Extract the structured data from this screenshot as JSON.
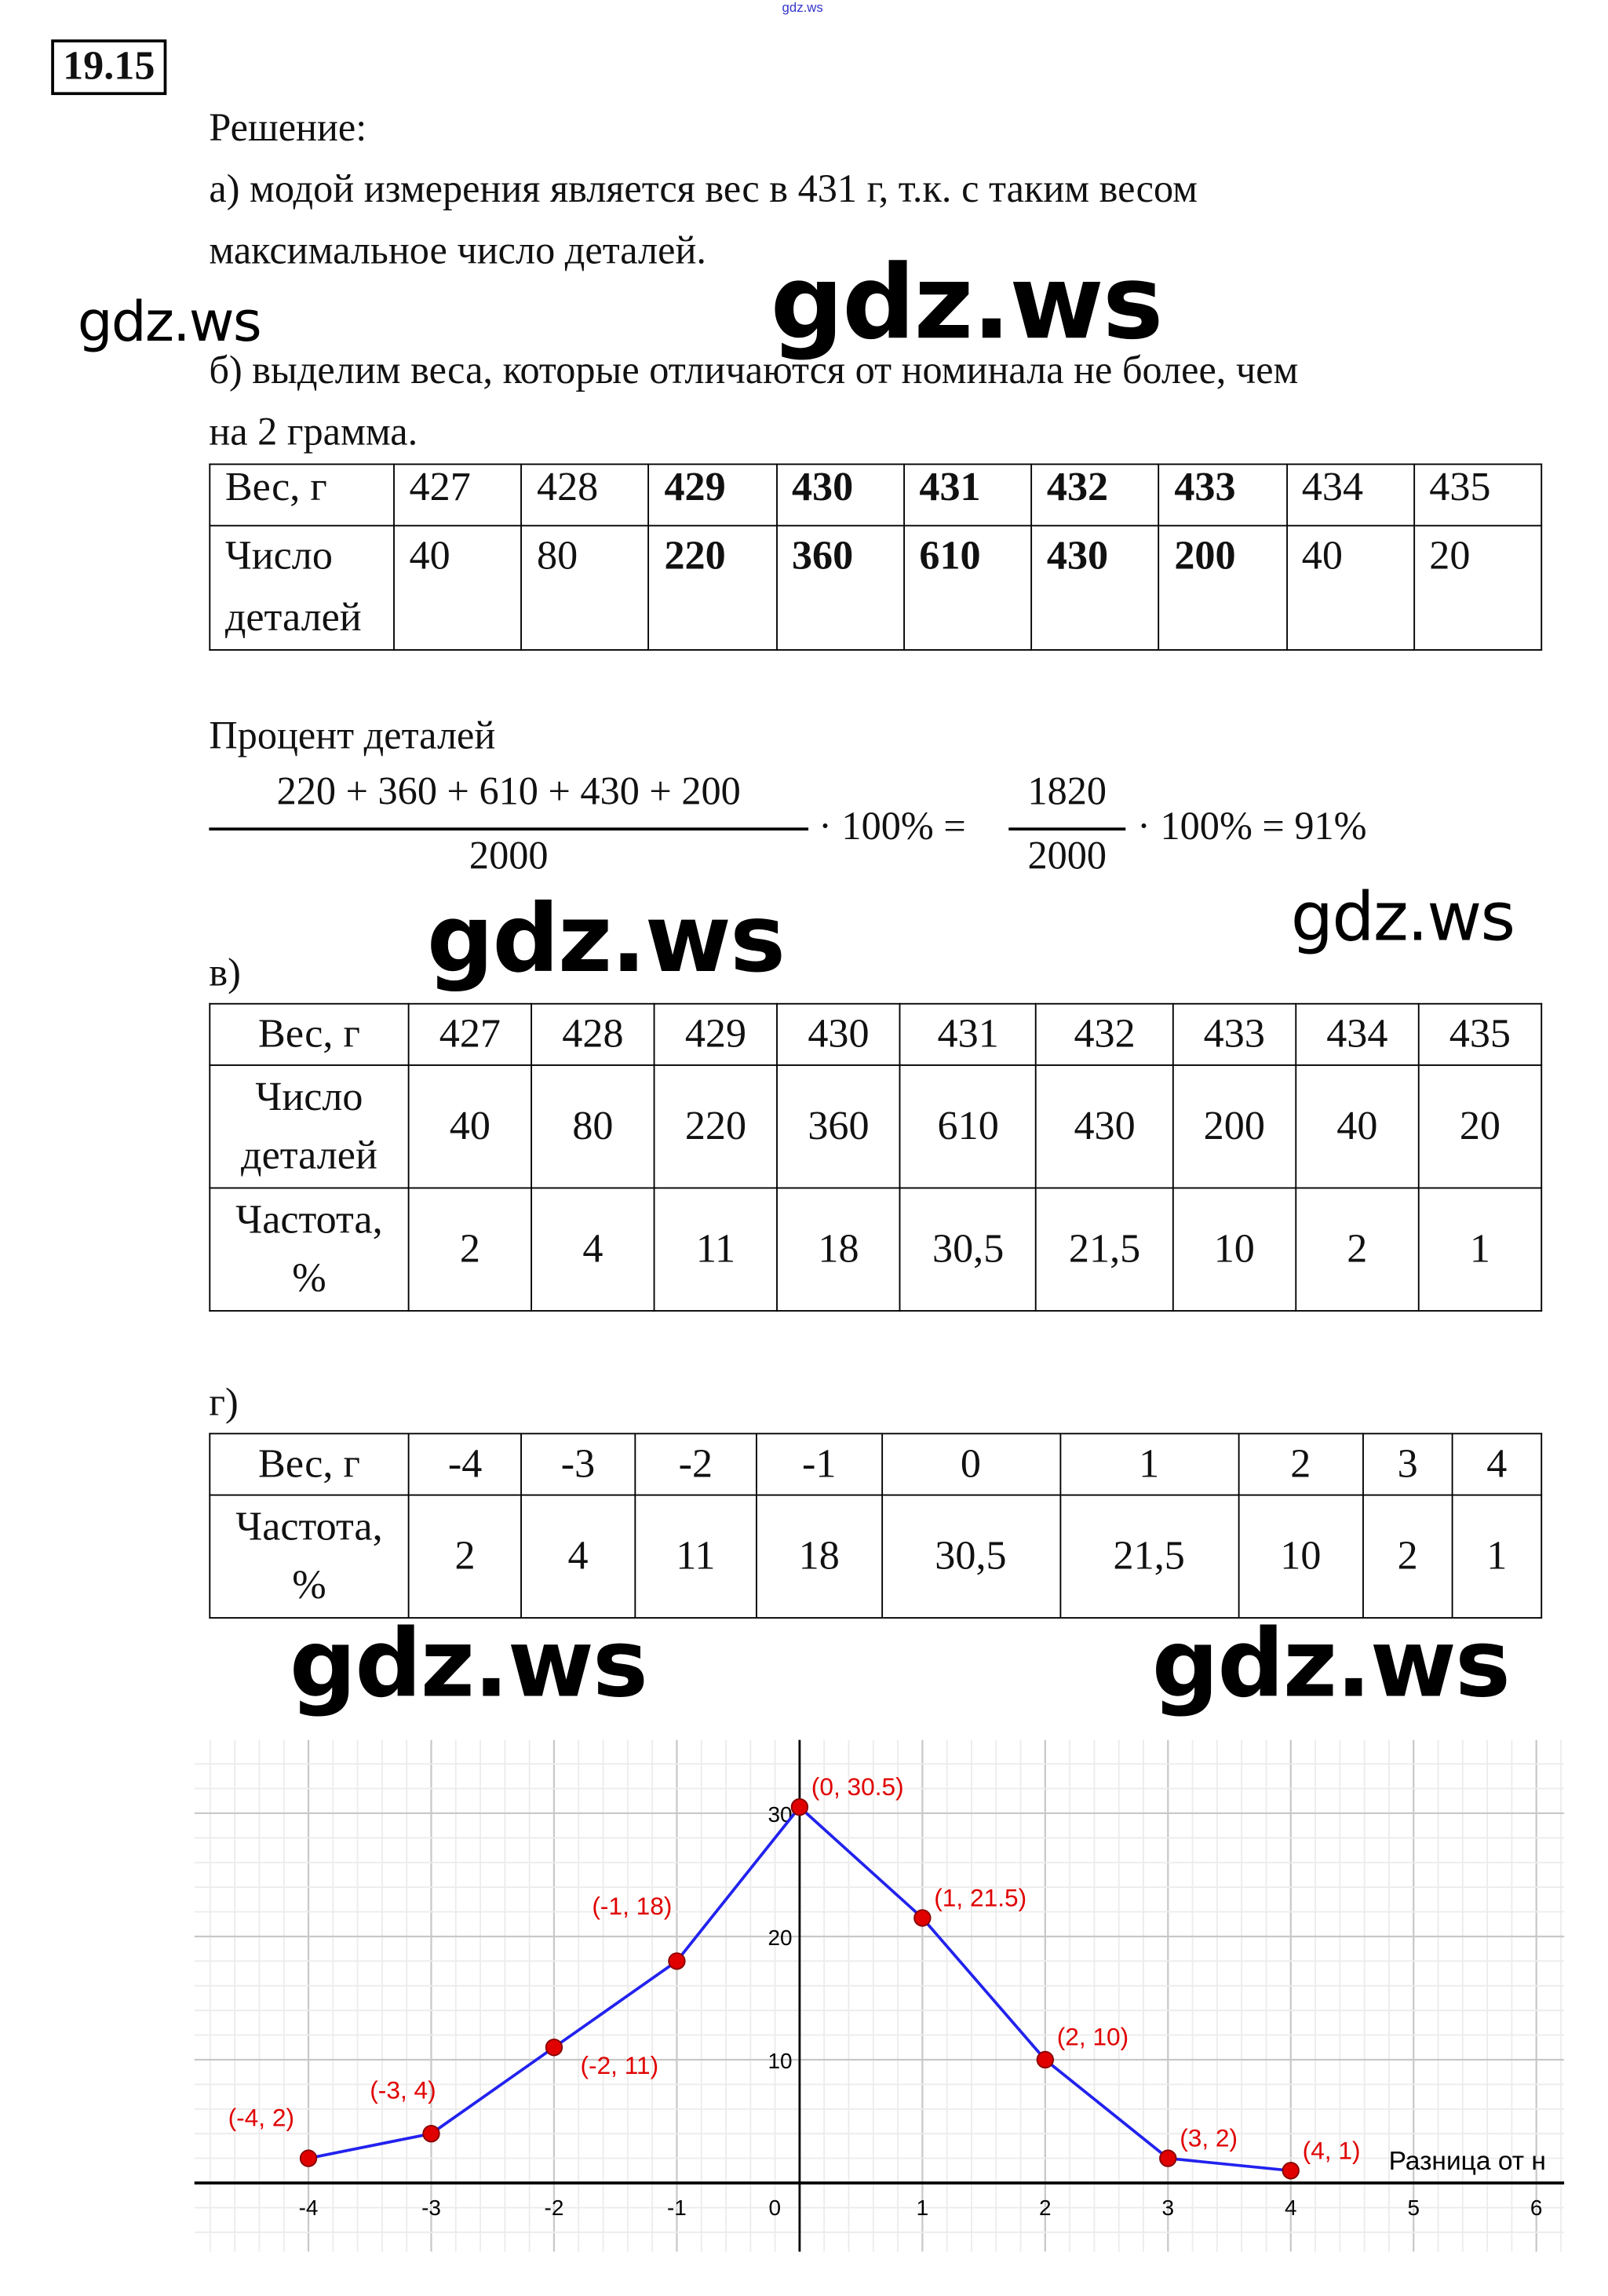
{
  "header_watermark": "gdz.ws",
  "problem_number": "19.15",
  "solution_label": "Решение:",
  "part_a": [
    "а) модой измерения является вес в 431 г, т.к. с таким весом",
    "максимальное число деталей."
  ],
  "part_b": [
    "б)  выделим веса, которые отличаются от номинала не более, чем",
    "на 2 грамма."
  ],
  "watermarks": [
    "gdz.ws",
    "gdz.ws",
    "gdz.ws",
    "gdz.ws",
    "gdz.ws",
    "gdz.ws"
  ],
  "table_b": {
    "row1_label": "Вес, г",
    "row2_label": "Число деталей",
    "weights": [
      "427",
      "428",
      "429",
      "430",
      "431",
      "432",
      "433",
      "434",
      "435"
    ],
    "counts": [
      "40",
      "80",
      "220",
      "360",
      "610",
      "430",
      "200",
      "40",
      "20"
    ],
    "bold_columns": [
      2,
      3,
      4,
      5,
      6
    ]
  },
  "percent_label": "Процент деталей",
  "formula": {
    "num1": "220 + 360 + 610 + 430 + 200",
    "den1": "2000",
    "mid": "· 100% =",
    "num2": "1820",
    "den2": "2000",
    "end": "· 100% = 91%"
  },
  "part_v_label": "в)",
  "table_v": {
    "row1_label": "Вес, г",
    "row2_label": "Число деталей",
    "row3_label": "Частота, %",
    "weights": [
      "427",
      "428",
      "429",
      "430",
      "431",
      "432",
      "433",
      "434",
      "435"
    ],
    "counts": [
      "40",
      "80",
      "220",
      "360",
      "610",
      "430",
      "200",
      "40",
      "20"
    ],
    "freq": [
      "2",
      "4",
      "11",
      "18",
      "30,5",
      "21,5",
      "10",
      "2",
      "1"
    ]
  },
  "part_g_label": "г)",
  "table_g": {
    "row1_label": "Вес, г",
    "row2_label": "Частота, %",
    "diffs": [
      "-4",
      "-3",
      "-2",
      "-1",
      "0",
      "1",
      "2",
      "3",
      "4"
    ],
    "freq": [
      "2",
      "4",
      "11",
      "18",
      "30,5",
      "21,5",
      "10",
      "2",
      "1"
    ]
  },
  "chart_data": {
    "type": "line",
    "x": [
      -4,
      -3,
      -2,
      -1,
      0,
      1,
      2,
      3,
      4
    ],
    "y": [
      2,
      4,
      11,
      18,
      30.5,
      21.5,
      10,
      2,
      1
    ],
    "point_labels": [
      "(-4, 2)",
      "(-3, 4)",
      "(-2, 11)",
      "(-1, 18)",
      "(0, 30.5)",
      "(1, 21.5)",
      "(2, 10)",
      "(3, 2)",
      "(4, 1)"
    ],
    "x_ticks": [
      "-4",
      "-3",
      "-2",
      "-1",
      "0",
      "1",
      "2",
      "3",
      "4",
      "5",
      "6"
    ],
    "y_ticks": [
      "10",
      "20",
      "30"
    ],
    "xlabel": "Разница от н",
    "xlim": [
      -5,
      6.3
    ],
    "ylim": [
      -5.5,
      36
    ],
    "grid": true,
    "line_color": "#2222ee",
    "point_color": "#e00000",
    "label_color": "#e00000"
  }
}
